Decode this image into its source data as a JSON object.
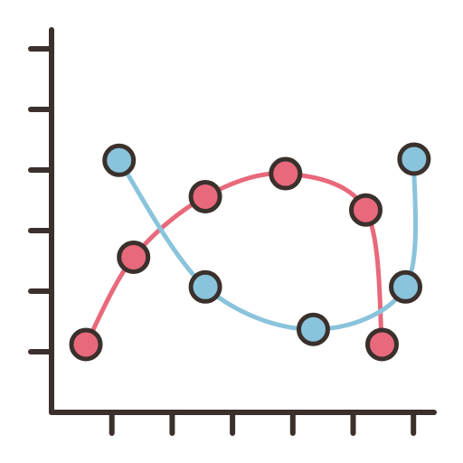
{
  "chart_data": {
    "type": "line",
    "title": "",
    "xlabel": "",
    "ylabel": "",
    "xlim": [
      0,
      6
    ],
    "ylim": [
      0,
      6
    ],
    "grid": false,
    "x_ticks": [
      1,
      2,
      3,
      4,
      5,
      6
    ],
    "y_ticks": [
      1,
      2,
      3,
      4,
      5,
      6
    ],
    "series": [
      {
        "color": "#e8697b",
        "points": [
          {
            "x": 0.57,
            "y": 1.12
          },
          {
            "x": 1.36,
            "y": 2.56
          },
          {
            "x": 2.55,
            "y": 3.56
          },
          {
            "x": 3.88,
            "y": 3.94
          },
          {
            "x": 5.21,
            "y": 3.34
          },
          {
            "x": 5.48,
            "y": 1.12
          }
        ]
      },
      {
        "color": "#8ac3dc",
        "points": [
          {
            "x": 1.12,
            "y": 4.16
          },
          {
            "x": 2.55,
            "y": 2.07
          },
          {
            "x": 4.34,
            "y": 1.37
          },
          {
            "x": 5.87,
            "y": 2.07
          },
          {
            "x": 6.01,
            "y": 4.18
          }
        ]
      }
    ]
  },
  "style": {
    "axis_color": "#3a302c",
    "marker_outline_color": "#3a302c"
  }
}
